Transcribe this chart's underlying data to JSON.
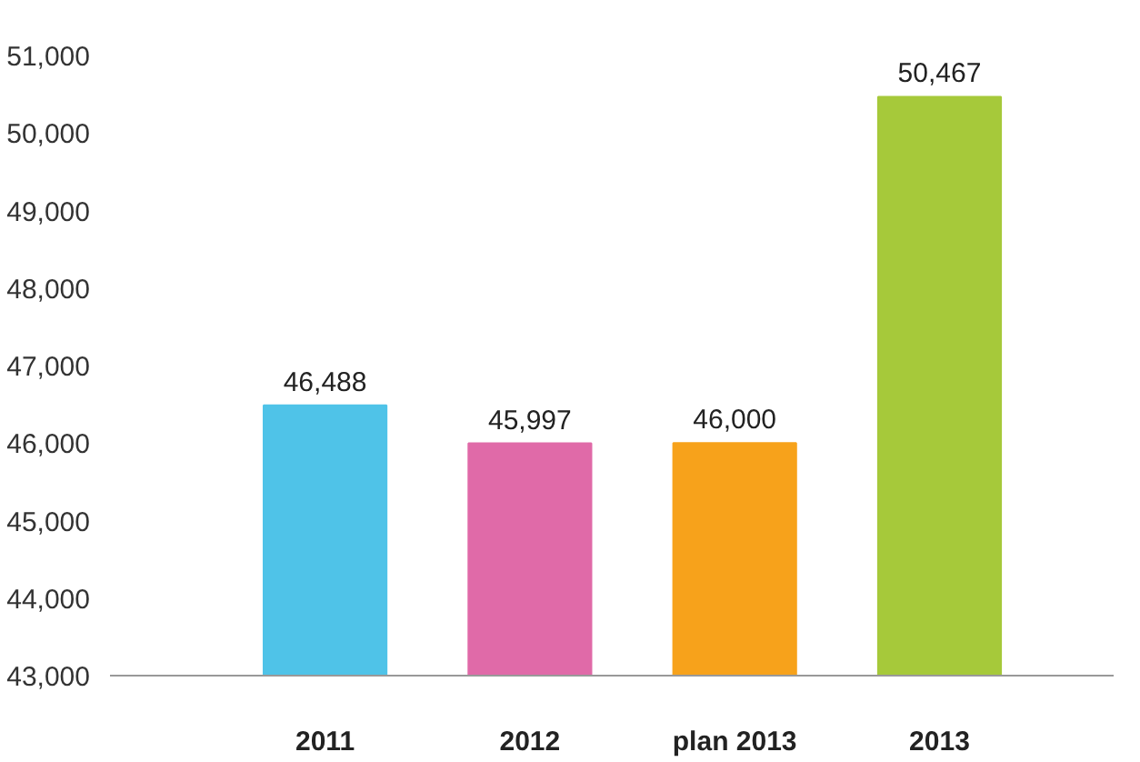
{
  "chart_data": {
    "type": "bar",
    "categories": [
      "2011",
      "2012",
      "plan 2013",
      "2013"
    ],
    "values": [
      46488,
      45997,
      46000,
      50467
    ],
    "colors": [
      "#4fc3e8",
      "#e06aa8",
      "#f7a21b",
      "#a6c93a"
    ],
    "ylim": [
      43000,
      51000
    ],
    "yticks": [
      {
        "value": 43000,
        "label": "43,000"
      },
      {
        "value": 44000,
        "label": "44,000"
      },
      {
        "value": 45000,
        "label": "45,000"
      },
      {
        "value": 46000,
        "label": "46,000"
      },
      {
        "value": 47000,
        "label": "47,000"
      },
      {
        "value": 48000,
        "label": "48,000"
      },
      {
        "value": 49000,
        "label": "49,000"
      },
      {
        "value": 50000,
        "label": "50,000"
      },
      {
        "value": 51000,
        "label": "51,000"
      }
    ],
    "value_labels": [
      "46,488",
      "45,997",
      "46,000",
      "50,467"
    ]
  }
}
